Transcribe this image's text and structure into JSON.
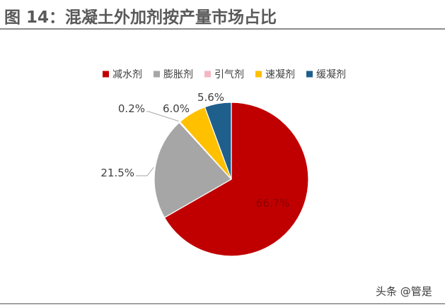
{
  "title": "图  14：混凝土外加剂按产量市场占比",
  "watermark": "头条 @管是",
  "chart_data": {
    "type": "pie",
    "title": "图  14：混凝土外加剂按产量市场占比",
    "legend_position": "top",
    "categories": [
      "减水剂",
      "膨胀剂",
      "引气剂",
      "速凝剂",
      "缓凝剂"
    ],
    "values": [
      66.7,
      21.5,
      0.2,
      6.0,
      5.6
    ],
    "labels": [
      "66.7%",
      "21.5%",
      "0.2%",
      "6.0%",
      "5.6%"
    ],
    "colors": [
      "#c00000",
      "#a6a6a6",
      "#f4b6c2",
      "#ffc000",
      "#1f5f8b"
    ]
  }
}
